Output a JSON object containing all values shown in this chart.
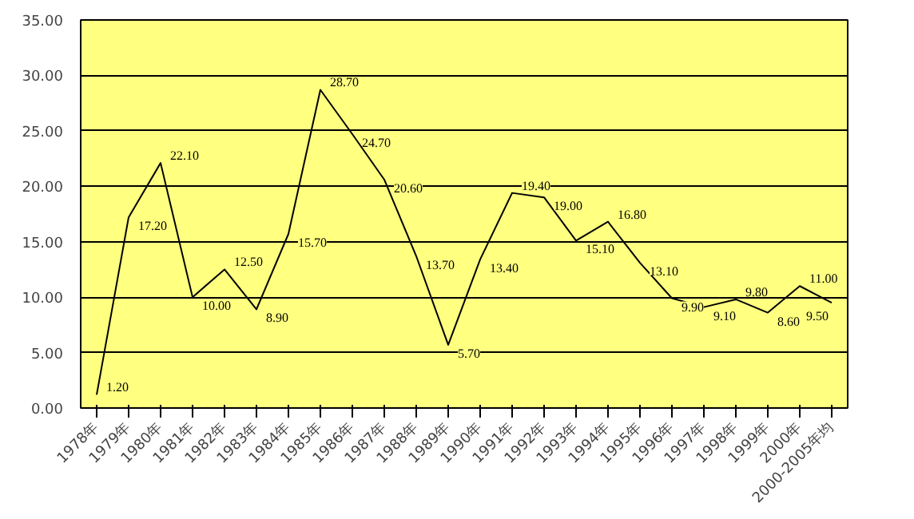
{
  "chart_data": {
    "type": "line",
    "categories": [
      "1978年",
      "1979年",
      "1980年",
      "1981年",
      "1982年",
      "1983年",
      "1984年",
      "1985年",
      "1986年",
      "1987年",
      "1988年",
      "1989年",
      "1990年",
      "1991年",
      "1992年",
      "1993年",
      "1994年",
      "1995年",
      "1996年",
      "1997年",
      "1998年",
      "1999年",
      "2000年",
      "2000-2005年均"
    ],
    "series": [
      {
        "color": "#000000",
        "values": [
          1.2,
          17.2,
          22.1,
          10.0,
          12.5,
          8.9,
          15.7,
          28.7,
          24.7,
          20.6,
          13.7,
          5.7,
          13.4,
          19.4,
          19.0,
          15.1,
          16.8,
          13.1,
          9.9,
          9.1,
          9.8,
          8.6,
          11.0,
          9.5
        ]
      }
    ],
    "value_labels": [
      "1.20",
      "17.20",
      "22.10",
      "10.00",
      "12.50",
      "8.90",
      "15.70",
      "28.70",
      "24.70",
      "20.60",
      "13.70",
      "5.70",
      "13.40",
      "19.40",
      "19.00",
      "15.10",
      "16.80",
      "13.10",
      "9.90",
      "9.10",
      "9.80",
      "8.60",
      "11.00",
      "9.50"
    ],
    "ylim": [
      0,
      35
    ],
    "yticks": [
      {
        "value": 0,
        "label": "0.00"
      },
      {
        "value": 5,
        "label": "5.00"
      },
      {
        "value": 10,
        "label": "10.00"
      },
      {
        "value": 15,
        "label": "15.00"
      },
      {
        "value": 20,
        "label": "20.00"
      },
      {
        "value": 25,
        "label": "25.00"
      },
      {
        "value": 30,
        "label": "30.00"
      },
      {
        "value": 35,
        "label": "35.00"
      }
    ],
    "grid": "y",
    "marker": "none",
    "line_style": "solid"
  }
}
